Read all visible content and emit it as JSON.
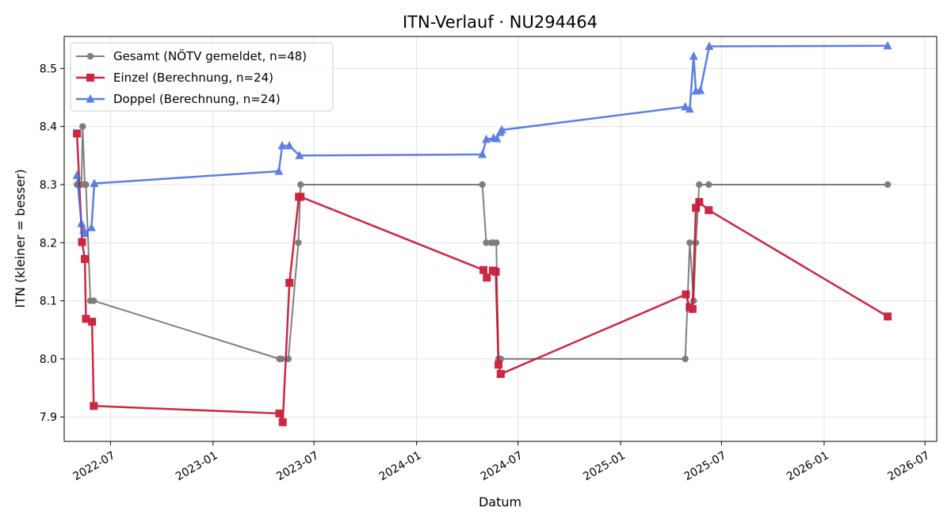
{
  "chart_data": {
    "type": "line",
    "title": "ITN-Verlauf · NU294464",
    "xlabel": "Datum",
    "ylabel": "ITN  (kleiner = besser)",
    "x_type": "date",
    "xlim": [
      "2022-04-09",
      "2026-07-22"
    ],
    "ylim": [
      7.858,
      8.555
    ],
    "x_ticks": [
      "2022-07-01",
      "2023-01-01",
      "2023-07-01",
      "2024-01-01",
      "2024-07-01",
      "2025-01-01",
      "2025-07-01",
      "2026-01-01",
      "2026-07-01"
    ],
    "x_tick_labels": [
      "2022-07",
      "2023-01",
      "2023-07",
      "2024-01",
      "2024-07",
      "2025-01",
      "2025-07",
      "2026-01",
      "2026-07"
    ],
    "y_ticks": [
      7.9,
      8.0,
      8.1,
      8.2,
      8.3,
      8.4,
      8.5
    ],
    "y_tick_labels": [
      "7.9",
      "8.0",
      "8.1",
      "8.2",
      "8.3",
      "8.4",
      "8.5"
    ],
    "grid": true,
    "legend_position": "top-left",
    "series": [
      {
        "name": "Gesamt (NÖTV gemeldet, n=48)",
        "color": "#555555",
        "marker": "circle",
        "x": [
          "2022-05-02",
          "2022-05-10",
          "2022-05-12",
          "2022-05-16",
          "2022-05-18",
          "2022-05-26",
          "2022-06-01",
          "2023-04-30",
          "2023-05-04",
          "2023-05-16",
          "2023-06-03",
          "2023-06-07",
          "2024-04-28",
          "2024-05-05",
          "2024-05-14",
          "2024-05-17",
          "2024-05-23",
          "2024-05-27",
          "2024-05-31",
          "2025-04-27",
          "2025-05-05",
          "2025-05-12",
          "2025-05-16",
          "2025-05-22",
          "2025-06-08",
          "2026-04-25"
        ],
        "values": [
          8.3,
          8.3,
          8.4,
          8.3,
          8.3,
          8.1,
          8.1,
          8.0,
          8.0,
          8.0,
          8.2,
          8.3,
          8.3,
          8.2,
          8.2,
          8.2,
          8.2,
          8.0,
          8.0,
          8.0,
          8.2,
          8.1,
          8.2,
          8.3,
          8.3,
          8.3
        ]
      },
      {
        "name": "Einzel (Berechnung, n=24)",
        "color": "#c8102e",
        "marker": "square",
        "x": [
          "2022-05-02",
          "2022-05-11",
          "2022-05-16",
          "2022-05-18",
          "2022-05-29",
          "2022-06-01",
          "2023-04-30",
          "2023-05-06",
          "2023-05-18",
          "2023-06-04",
          "2023-06-07",
          "2024-04-30",
          "2024-05-06",
          "2024-05-17",
          "2024-05-22",
          "2024-05-27",
          "2024-05-31",
          "2025-04-28",
          "2025-05-05",
          "2025-05-10",
          "2025-05-16",
          "2025-05-22",
          "2025-06-08",
          "2026-04-25"
        ],
        "values": [
          8.388,
          8.201,
          8.172,
          8.069,
          8.064,
          7.919,
          7.906,
          7.891,
          8.131,
          8.279,
          8.279,
          8.153,
          8.14,
          8.152,
          8.15,
          7.99,
          7.974,
          8.111,
          8.089,
          8.086,
          8.26,
          8.27,
          8.256,
          8.073
        ]
      },
      {
        "name": "Doppel (Berechnung, n=24)",
        "color": "#4169e1",
        "marker": "triangle",
        "x": [
          "2022-05-02",
          "2022-05-10",
          "2022-05-14",
          "2022-05-16",
          "2022-05-28",
          "2022-06-02",
          "2023-04-29",
          "2023-05-05",
          "2023-05-18",
          "2023-06-05",
          "2024-04-28",
          "2024-05-05",
          "2024-05-18",
          "2024-05-24",
          "2024-05-30",
          "2024-06-02",
          "2025-04-27",
          "2025-05-05",
          "2025-05-12",
          "2025-05-16",
          "2025-05-24",
          "2025-06-09",
          "2026-04-25"
        ],
        "values": [
          8.316,
          8.233,
          8.222,
          8.216,
          8.226,
          8.302,
          8.323,
          8.367,
          8.367,
          8.35,
          8.352,
          8.378,
          8.38,
          8.379,
          8.39,
          8.394,
          8.434,
          8.43,
          8.521,
          8.461,
          8.462,
          8.538,
          8.539
        ]
      }
    ]
  }
}
